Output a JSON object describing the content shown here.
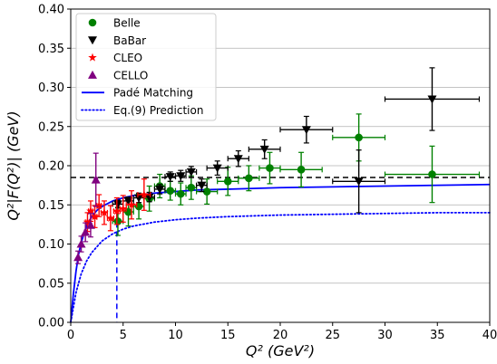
{
  "chart_data": {
    "type": "scatter",
    "xlabel": "Q² (GeV²)",
    "ylabel": "Q²|F(Q²)| (GeV)",
    "xlim": [
      0,
      40
    ],
    "ylim": [
      0,
      0.4
    ],
    "x_ticks": [
      0,
      5,
      10,
      15,
      20,
      25,
      30,
      35,
      40
    ],
    "y_ticks": [
      0.0,
      0.05,
      0.1,
      0.15,
      0.2,
      0.25,
      0.3,
      0.35,
      0.4
    ],
    "y_tick_labels": [
      "0.00",
      "0.05",
      "0.10",
      "0.15",
      "0.20",
      "0.25",
      "0.30",
      "0.35",
      "0.40"
    ],
    "grid": "horizontal",
    "legend_position": "top-left",
    "series": [
      {
        "name": "Belle",
        "marker": "circle",
        "color": "#008000",
        "points": [
          {
            "x": 4.5,
            "y": 0.129,
            "xerr": 0.5,
            "yerr": 0.018
          },
          {
            "x": 5.5,
            "y": 0.141,
            "xerr": 0.5,
            "yerr": 0.018
          },
          {
            "x": 6.5,
            "y": 0.148,
            "xerr": 0.5,
            "yerr": 0.016
          },
          {
            "x": 7.5,
            "y": 0.158,
            "xerr": 0.5,
            "yerr": 0.016
          },
          {
            "x": 8.5,
            "y": 0.174,
            "xerr": 0.5,
            "yerr": 0.015
          },
          {
            "x": 9.5,
            "y": 0.168,
            "xerr": 0.5,
            "yerr": 0.012
          },
          {
            "x": 10.5,
            "y": 0.164,
            "xerr": 0.5,
            "yerr": 0.014
          },
          {
            "x": 11.5,
            "y": 0.172,
            "xerr": 0.5,
            "yerr": 0.015
          },
          {
            "x": 13.0,
            "y": 0.167,
            "xerr": 1.0,
            "yerr": 0.016
          },
          {
            "x": 15.0,
            "y": 0.18,
            "xerr": 1.0,
            "yerr": 0.018
          },
          {
            "x": 17.0,
            "y": 0.184,
            "xerr": 1.0,
            "yerr": 0.016
          },
          {
            "x": 19.0,
            "y": 0.197,
            "xerr": 1.0,
            "yerr": 0.02
          },
          {
            "x": 22.0,
            "y": 0.195,
            "xerr": 2.0,
            "yerr": 0.022
          },
          {
            "x": 27.5,
            "y": 0.236,
            "xerr": 2.5,
            "yerr": 0.03
          },
          {
            "x": 34.5,
            "y": 0.189,
            "xerr": 4.5,
            "yerr": 0.036
          }
        ]
      },
      {
        "name": "BaBar",
        "marker": "triangle-down",
        "color": "#000000",
        "points": [
          {
            "x": 4.5,
            "y": 0.151,
            "xerr": 0.5,
            "yerr": 0.005
          },
          {
            "x": 5.5,
            "y": 0.155,
            "xerr": 0.5,
            "yerr": 0.005
          },
          {
            "x": 6.5,
            "y": 0.159,
            "xerr": 0.5,
            "yerr": 0.006
          },
          {
            "x": 7.5,
            "y": 0.16,
            "xerr": 0.5,
            "yerr": 0.006
          },
          {
            "x": 8.5,
            "y": 0.17,
            "xerr": 0.5,
            "yerr": 0.006
          },
          {
            "x": 9.5,
            "y": 0.186,
            "xerr": 0.5,
            "yerr": 0.006
          },
          {
            "x": 10.5,
            "y": 0.187,
            "xerr": 0.5,
            "yerr": 0.007
          },
          {
            "x": 11.5,
            "y": 0.192,
            "xerr": 0.5,
            "yerr": 0.007
          },
          {
            "x": 12.5,
            "y": 0.175,
            "xerr": 0.5,
            "yerr": 0.008
          },
          {
            "x": 14.0,
            "y": 0.197,
            "xerr": 1.0,
            "yerr": 0.009
          },
          {
            "x": 16.0,
            "y": 0.209,
            "xerr": 1.0,
            "yerr": 0.01
          },
          {
            "x": 18.5,
            "y": 0.221,
            "xerr": 1.5,
            "yerr": 0.012
          },
          {
            "x": 22.5,
            "y": 0.246,
            "xerr": 2.5,
            "yerr": 0.017
          },
          {
            "x": 27.5,
            "y": 0.18,
            "xerr": 2.5,
            "yerr": 0.04
          },
          {
            "x": 34.5,
            "y": 0.285,
            "xerr": 4.5,
            "yerr": 0.04
          }
        ]
      },
      {
        "name": "CLEO",
        "marker": "star",
        "color": "#ff0000",
        "points": [
          {
            "x": 1.6,
            "y": 0.128,
            "xerr": 0.2,
            "yerr": 0.012
          },
          {
            "x": 1.9,
            "y": 0.142,
            "xerr": 0.2,
            "yerr": 0.013
          },
          {
            "x": 2.3,
            "y": 0.135,
            "xerr": 0.2,
            "yerr": 0.014
          },
          {
            "x": 2.7,
            "y": 0.149,
            "xerr": 0.2,
            "yerr": 0.014
          },
          {
            "x": 3.2,
            "y": 0.14,
            "xerr": 0.3,
            "yerr": 0.015
          },
          {
            "x": 3.8,
            "y": 0.133,
            "xerr": 0.3,
            "yerr": 0.016
          },
          {
            "x": 4.4,
            "y": 0.142,
            "xerr": 0.3,
            "yerr": 0.017
          },
          {
            "x": 5.0,
            "y": 0.145,
            "xerr": 0.3,
            "yerr": 0.017
          },
          {
            "x": 5.8,
            "y": 0.15,
            "xerr": 0.5,
            "yerr": 0.018
          },
          {
            "x": 7.0,
            "y": 0.163,
            "xerr": 0.6,
            "yerr": 0.02
          }
        ]
      },
      {
        "name": "CELLO",
        "marker": "triangle-up",
        "color": "#800080",
        "points": [
          {
            "x": 0.7,
            "y": 0.083,
            "xerr": 0.05,
            "yerr": 0.008
          },
          {
            "x": 1.0,
            "y": 0.1,
            "xerr": 0.05,
            "yerr": 0.01
          },
          {
            "x": 1.4,
            "y": 0.115,
            "xerr": 0.1,
            "yerr": 0.012
          },
          {
            "x": 1.9,
            "y": 0.124,
            "xerr": 0.1,
            "yerr": 0.015
          },
          {
            "x": 2.4,
            "y": 0.182,
            "xerr": 0.15,
            "yerr": 0.034
          }
        ]
      }
    ],
    "curves": [
      {
        "name": "Padé Matching",
        "style": "solid",
        "color": "#0000ff",
        "x": [
          0,
          0.25,
          0.5,
          0.75,
          1,
          1.5,
          2,
          2.5,
          3,
          4,
          5,
          6,
          8,
          10,
          12,
          15,
          20,
          25,
          30,
          35,
          40
        ],
        "y": [
          0,
          0.036,
          0.065,
          0.087,
          0.102,
          0.123,
          0.135,
          0.143,
          0.148,
          0.155,
          0.159,
          0.162,
          0.165,
          0.167,
          0.169,
          0.17,
          0.172,
          0.173,
          0.174,
          0.175,
          0.176
        ]
      },
      {
        "name": "Eq.(9) Prediction",
        "style": "dotted",
        "color": "#0000ff",
        "x": [
          0,
          0.5,
          1,
          1.5,
          2,
          3,
          4,
          5,
          6,
          8,
          10,
          12,
          15,
          20,
          25,
          30,
          35,
          40
        ],
        "y": [
          0,
          0.038,
          0.062,
          0.078,
          0.089,
          0.104,
          0.113,
          0.119,
          0.123,
          0.128,
          0.131,
          0.133,
          0.135,
          0.137,
          0.138,
          0.139,
          0.14,
          0.14
        ]
      }
    ],
    "reference_lines": [
      {
        "orientation": "horizontal",
        "y": 0.185,
        "style": "dashed",
        "color": "#000000"
      },
      {
        "orientation": "vertical",
        "x": 4.4,
        "y_top": 0.151,
        "style": "dashed",
        "color": "#0000ff"
      }
    ]
  }
}
